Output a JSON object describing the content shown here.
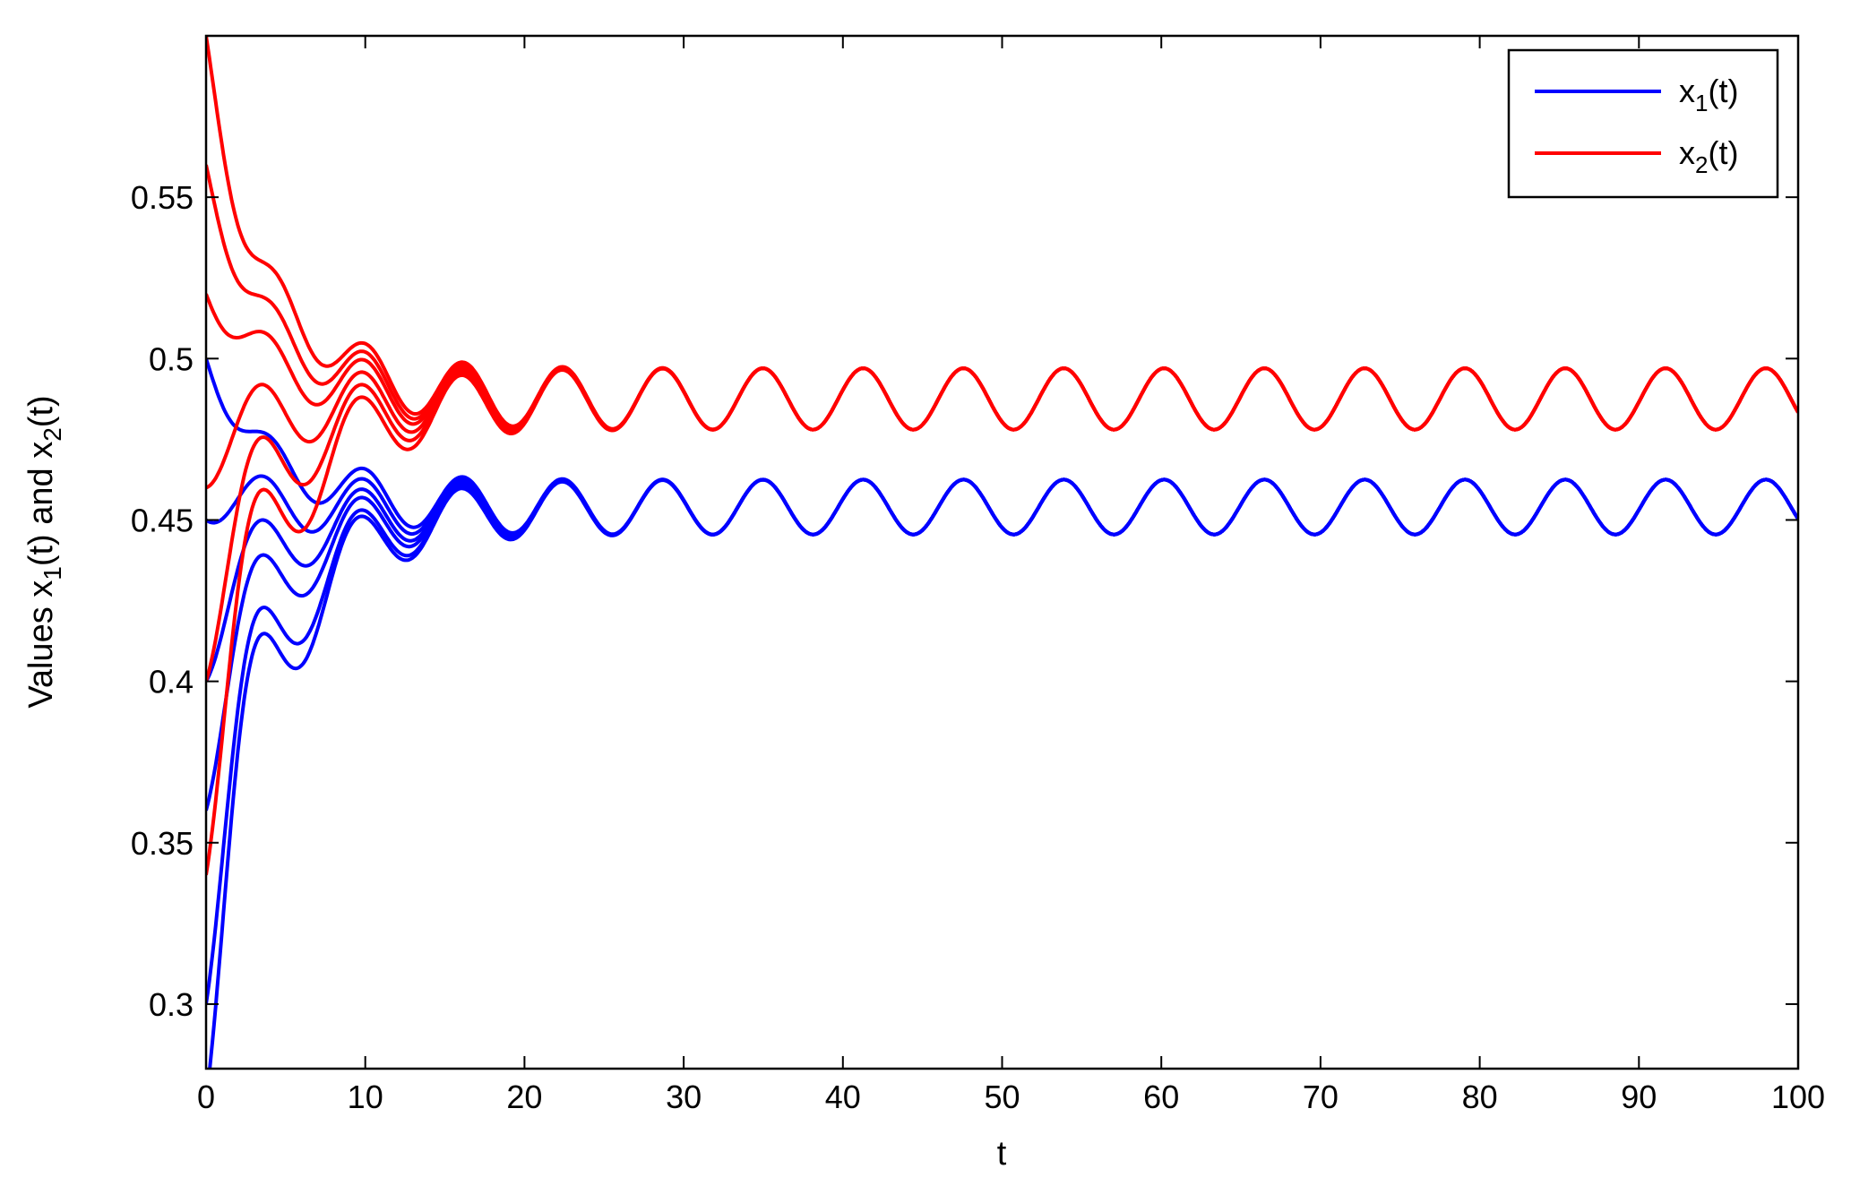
{
  "chart_data": {
    "type": "line",
    "xlabel": "t",
    "ylabel": "Values x1(t) and x2(t)",
    "ylabel_parts": {
      "a": "Values x",
      "sub1": "1",
      "b": "(t) and x",
      "sub2": "2",
      "c": "(t)"
    },
    "xlim": [
      0,
      100
    ],
    "ylim": [
      0.28,
      0.6
    ],
    "x_ticks": [
      0,
      10,
      20,
      30,
      40,
      50,
      60,
      70,
      80,
      90,
      100
    ],
    "x_tick_labels": [
      "0",
      "10",
      "20",
      "30",
      "40",
      "50",
      "60",
      "70",
      "80",
      "90",
      "100"
    ],
    "y_ticks": [
      0.3,
      0.35,
      0.4,
      0.45,
      0.5,
      0.55
    ],
    "y_tick_labels": [
      "0.3",
      "0.35",
      "0.4",
      "0.45",
      "0.5",
      "0.55"
    ],
    "grid": false,
    "legend_placement": "top-right",
    "legend": [
      {
        "label_main": "x",
        "label_sub": "1",
        "label_tail": "(t)",
        "color": "#0000ff"
      },
      {
        "label_main": "x",
        "label_sub": "2",
        "label_tail": "(t)",
        "color": "#ff0000"
      }
    ],
    "series": [
      {
        "name": "x1(t)",
        "color": "#0000ff",
        "steady_mean": 0.454,
        "steady_amplitude": 0.0085,
        "period": 6.3,
        "initial_values": [
          0.5,
          0.45,
          0.4,
          0.36,
          0.3,
          0.27
        ]
      },
      {
        "name": "x2(t)",
        "color": "#ff0000",
        "steady_mean": 0.4875,
        "steady_amplitude": 0.0095,
        "period": 6.3,
        "initial_values": [
          0.6,
          0.56,
          0.52,
          0.46,
          0.4,
          0.34
        ]
      }
    ]
  }
}
